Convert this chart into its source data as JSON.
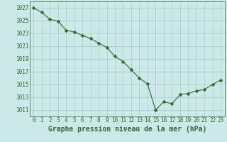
{
  "x": [
    0,
    1,
    2,
    3,
    4,
    5,
    6,
    7,
    8,
    9,
    10,
    11,
    12,
    13,
    14,
    15,
    16,
    17,
    18,
    19,
    20,
    21,
    22,
    23
  ],
  "y": [
    1027.0,
    1026.3,
    1025.2,
    1024.9,
    1023.5,
    1023.2,
    1022.7,
    1022.2,
    1021.5,
    1020.8,
    1019.4,
    1018.6,
    1017.3,
    1016.0,
    1015.1,
    1011.0,
    1012.3,
    1012.0,
    1013.4,
    1013.6,
    1014.0,
    1014.2,
    1015.0,
    1015.7
  ],
  "line_color": "#2d6a2d",
  "marker": "D",
  "marker_size": 2.5,
  "bg_color": "#cce8e8",
  "grid_color": "#aacccc",
  "xlabel": "Graphe pression niveau de la mer (hPa)",
  "xlabel_fontsize": 7,
  "tick_fontsize": 5.5,
  "yticks": [
    1011,
    1013,
    1015,
    1017,
    1019,
    1021,
    1023,
    1025,
    1027
  ],
  "ylim": [
    1010.0,
    1028.0
  ],
  "xlim": [
    -0.5,
    23.5
  ],
  "xticks": [
    0,
    1,
    2,
    3,
    4,
    5,
    6,
    7,
    8,
    9,
    10,
    11,
    12,
    13,
    14,
    15,
    16,
    17,
    18,
    19,
    20,
    21,
    22,
    23
  ]
}
